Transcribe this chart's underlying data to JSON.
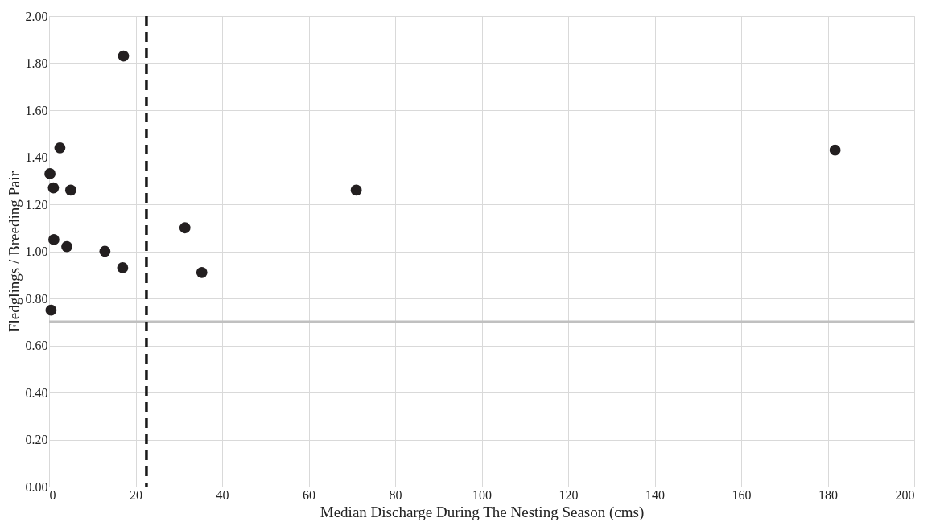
{
  "chart_data": {
    "type": "scatter",
    "xlabel": "Median Discharge During The Nesting Season (cms)",
    "ylabel": "Fledglings / Breeding Pair",
    "x": [
      17.2,
      2.5,
      0.2,
      1.0,
      5.0,
      1.1,
      4.1,
      12.9,
      17.0,
      31.4,
      35.3,
      0.45,
      71.0,
      181.7
    ],
    "series": [
      {
        "color": "#231f20",
        "values": [
          1.83,
          1.44,
          1.33,
          1.27,
          1.26,
          1.05,
          1.02,
          1.0,
          0.93,
          1.1,
          0.91,
          0.75,
          1.26,
          1.43
        ]
      }
    ],
    "marker": "circle",
    "xlim": [
      0,
      200
    ],
    "xticks": [
      0,
      20,
      40,
      60,
      80,
      100,
      120,
      140,
      160,
      180,
      200
    ],
    "ylim": [
      0,
      2
    ],
    "yticks": [
      {
        "value": 0,
        "label": "0.00"
      },
      {
        "value": 0.2,
        "label": "0.20"
      },
      {
        "value": 0.4,
        "label": "0.40"
      },
      {
        "value": 0.6,
        "label": "0.60"
      },
      {
        "value": 0.8,
        "label": "0.80"
      },
      {
        "value": 1.0,
        "label": "1.00"
      },
      {
        "value": 1.2,
        "label": "1.20"
      },
      {
        "value": 1.4,
        "label": "1.40"
      },
      {
        "value": 1.6,
        "label": "1.60"
      },
      {
        "value": 1.8,
        "label": "1.80"
      },
      {
        "value": 2.0,
        "label": "2.00"
      }
    ],
    "ref_lines": [
      {
        "axis": "y",
        "value": 0.7,
        "color": "#c0c0c0",
        "line_style": "solid"
      },
      {
        "axis": "x",
        "value": 22.5,
        "color": "#1a1a1a",
        "line_style": "dashed"
      }
    ],
    "grid": true
  }
}
